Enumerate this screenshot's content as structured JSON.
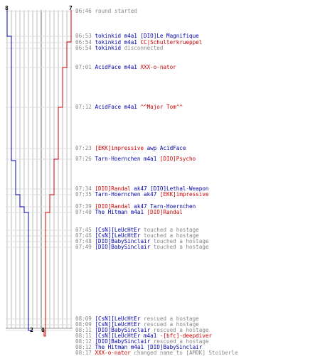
{
  "score": {
    "blue_start": "8",
    "red_start": "7",
    "blue_end": "2",
    "red_end": "0"
  },
  "colors": {
    "blue": "#0000aa",
    "red": "#cc0000",
    "time": "#888888",
    "grid": "#bbbbbb"
  },
  "log": [
    {
      "time": "06:46",
      "parts": [
        {
          "t": "round started",
          "c": "gray"
        }
      ]
    },
    {
      "time": "06:53",
      "parts": [
        {
          "t": "tokinkid",
          "c": "blue"
        },
        {
          "t": " m4a1 ",
          "c": "blue"
        },
        {
          "t": "[DIO]Le Magnifique",
          "c": "blue"
        }
      ]
    },
    {
      "time": "06:54",
      "parts": [
        {
          "t": "tokinkid",
          "c": "blue"
        },
        {
          "t": " m4a1 ",
          "c": "blue"
        },
        {
          "t": "CC|Schulterkrueppel",
          "c": "red"
        }
      ]
    },
    {
      "time": "06:54",
      "parts": [
        {
          "t": "tokinkid",
          "c": "blue"
        },
        {
          "t": " disconnected",
          "c": "gray"
        }
      ]
    },
    {
      "time": "07:01",
      "parts": [
        {
          "t": "AcidFace",
          "c": "blue"
        },
        {
          "t": " m4a1 ",
          "c": "blue"
        },
        {
          "t": "XXX-o-nator",
          "c": "red"
        }
      ]
    },
    {
      "time": "07:12",
      "parts": [
        {
          "t": "AcidFace",
          "c": "blue"
        },
        {
          "t": " m4a1 ",
          "c": "blue"
        },
        {
          "t": "^^Major Tom^^",
          "c": "red"
        }
      ]
    },
    {
      "time": "07:23",
      "parts": [
        {
          "t": "[EKK]impressive",
          "c": "red"
        },
        {
          "t": " awp ",
          "c": "blue"
        },
        {
          "t": "AcidFace",
          "c": "blue"
        }
      ]
    },
    {
      "time": "07:26",
      "parts": [
        {
          "t": "Tarn-Hoernchen",
          "c": "blue"
        },
        {
          "t": " m4a1 ",
          "c": "blue"
        },
        {
          "t": "[DIO]Psycho",
          "c": "red"
        }
      ]
    },
    {
      "time": "07:34",
      "parts": [
        {
          "t": "[DIO]Randal",
          "c": "red"
        },
        {
          "t": " ak47 ",
          "c": "blue"
        },
        {
          "t": "[DIO]Lethal-Weapon",
          "c": "blue"
        }
      ]
    },
    {
      "time": "07:35",
      "parts": [
        {
          "t": "Tarn-Hoernchen",
          "c": "blue"
        },
        {
          "t": " ak47 ",
          "c": "blue"
        },
        {
          "t": "[EKK]impressive",
          "c": "red"
        }
      ]
    },
    {
      "time": "07:39",
      "parts": [
        {
          "t": "[DIO]Randal",
          "c": "red"
        },
        {
          "t": " ak47 ",
          "c": "blue"
        },
        {
          "t": "Tarn-Hoernchen",
          "c": "blue"
        }
      ]
    },
    {
      "time": "07:40",
      "parts": [
        {
          "t": "The Hitman",
          "c": "blue"
        },
        {
          "t": " m4a1 ",
          "c": "blue"
        },
        {
          "t": "[DIO]Randal",
          "c": "red"
        }
      ]
    },
    {
      "time": "07:45",
      "parts": [
        {
          "t": "[CsN][LeUcHtEr",
          "c": "blue"
        },
        {
          "t": " touched a hostage",
          "c": "gray"
        }
      ]
    },
    {
      "time": "07:46",
      "parts": [
        {
          "t": "[CsN][LeUcHtEr",
          "c": "blue"
        },
        {
          "t": " touched a hostage",
          "c": "gray"
        }
      ]
    },
    {
      "time": "07:48",
      "parts": [
        {
          "t": "[DIO]BabySinclair",
          "c": "blue"
        },
        {
          "t": " touched a hostage",
          "c": "gray"
        }
      ]
    },
    {
      "time": "07:49",
      "parts": [
        {
          "t": "[DIO]BabySinclair",
          "c": "blue"
        },
        {
          "t": " touched a hostage",
          "c": "gray"
        }
      ]
    },
    {
      "time": "08:09",
      "parts": [
        {
          "t": "[CsN][LeUcHtEr",
          "c": "blue"
        },
        {
          "t": " rescued a hostage",
          "c": "gray"
        }
      ]
    },
    {
      "time": "08:09",
      "parts": [
        {
          "t": "[CsN][LeUcHtEr",
          "c": "blue"
        },
        {
          "t": " rescued a hostage",
          "c": "gray"
        }
      ]
    },
    {
      "time": "08:11",
      "parts": [
        {
          "t": "[DIO]BabySinclair",
          "c": "blue"
        },
        {
          "t": " rescued a hostage",
          "c": "gray"
        }
      ]
    },
    {
      "time": "08:11",
      "parts": [
        {
          "t": "[CsN][LeUcHtEr",
          "c": "blue"
        },
        {
          "t": " m4a1 ",
          "c": "blue"
        },
        {
          "t": "-[bfc]-deepdiver",
          "c": "red"
        }
      ]
    },
    {
      "time": "08:12",
      "parts": [
        {
          "t": "[DIO]BabySinclair",
          "c": "blue"
        },
        {
          "t": " rescued a hostage",
          "c": "gray"
        }
      ]
    },
    {
      "time": "08:12",
      "parts": [
        {
          "t": "The Hitman",
          "c": "blue"
        },
        {
          "t": " m4a1 ",
          "c": "blue"
        },
        {
          "t": "[DIO]BabySinclair",
          "c": "blue"
        }
      ]
    },
    {
      "time": "08:17",
      "parts": [
        {
          "t": "XXX-o-nator",
          "c": "red"
        },
        {
          "t": " changed name to [AMOK] Stoiberle",
          "c": "gray"
        }
      ]
    }
  ]
}
